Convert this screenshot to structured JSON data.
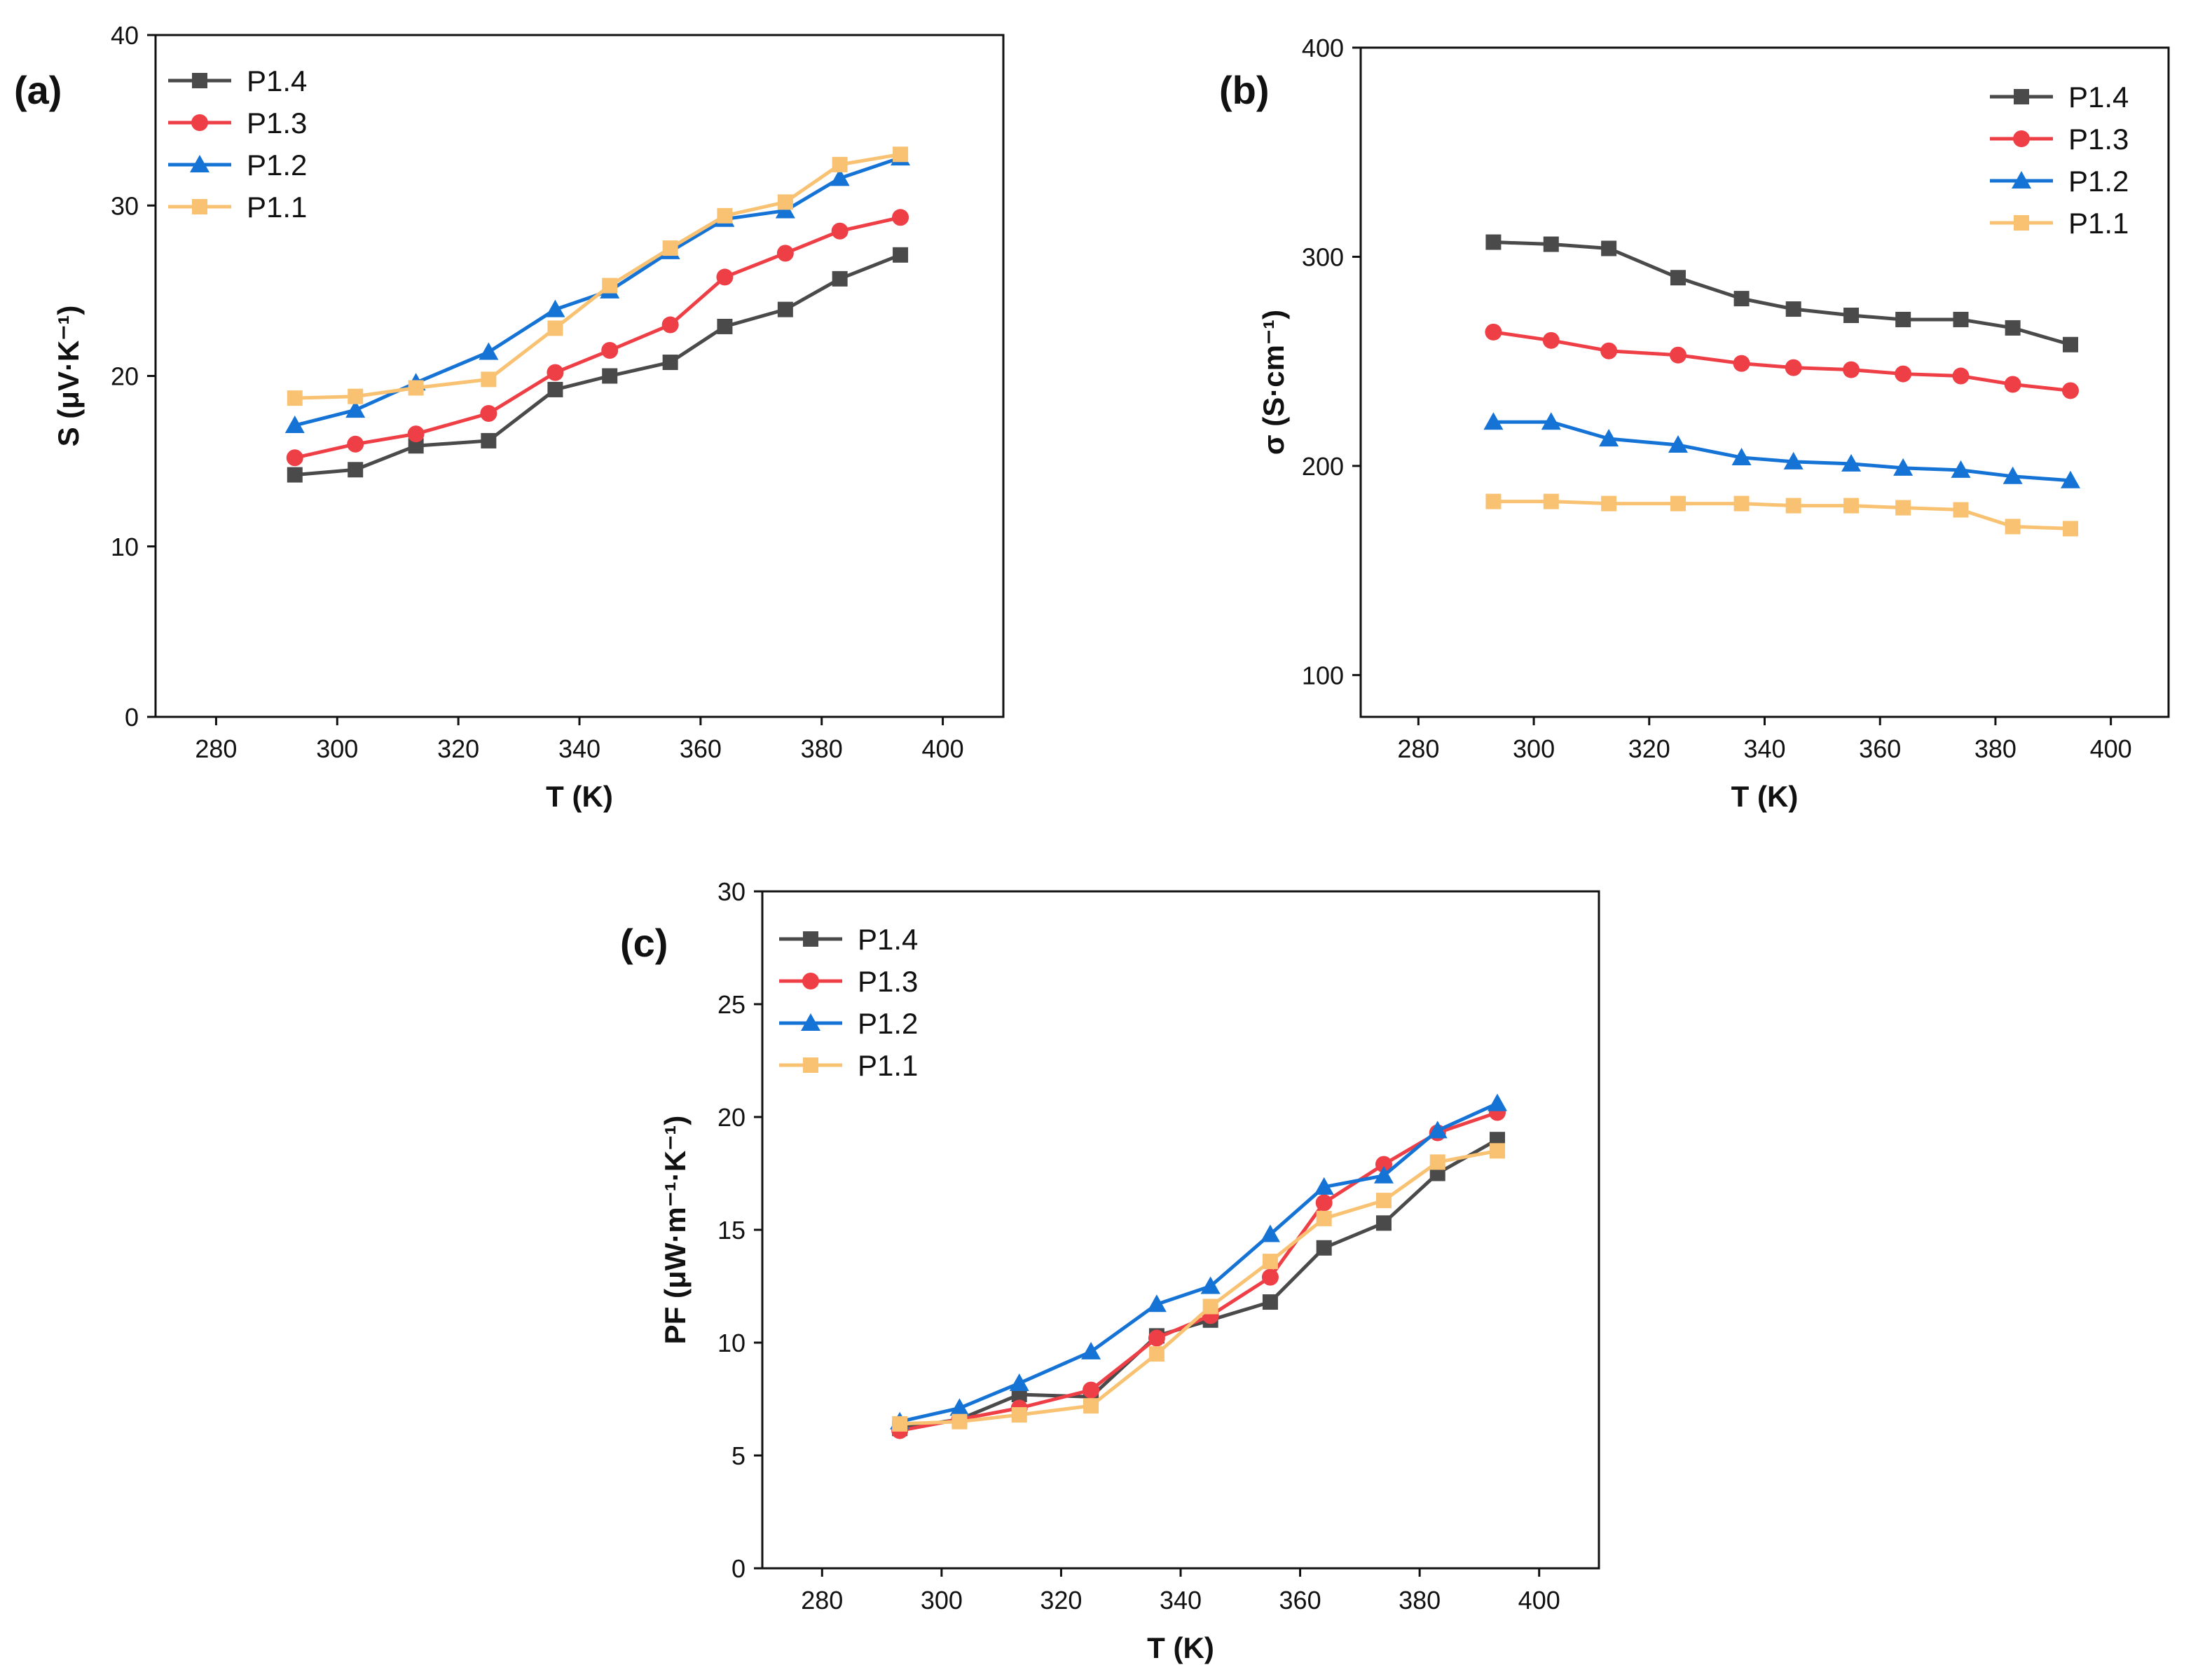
{
  "colors": {
    "P1.4": "#4a4a4a",
    "P1.3": "#ef3f46",
    "P1.2": "#1673d6",
    "P1.1": "#f8c272"
  },
  "chart_data": [
    {
      "type": "line",
      "panel_label": "(a)",
      "xlabel": "T (K)",
      "ylabel": "S (μV·K⁻¹)",
      "xlim": [
        270,
        410
      ],
      "ylim": [
        0,
        40
      ],
      "xticks": [
        280,
        300,
        320,
        340,
        360,
        380,
        400
      ],
      "yticks": [
        0,
        10,
        20,
        30,
        40
      ],
      "legend_position": "top-left",
      "x": [
        293,
        303,
        313,
        325,
        336,
        345,
        355,
        364,
        374,
        383,
        393
      ],
      "series": [
        {
          "name": "P1.4",
          "marker": "square",
          "values": [
            14.2,
            14.5,
            15.9,
            16.2,
            19.2,
            20.0,
            20.8,
            22.9,
            23.9,
            25.7,
            27.1
          ]
        },
        {
          "name": "P1.3",
          "marker": "circle",
          "values": [
            15.2,
            16.0,
            16.6,
            17.8,
            20.2,
            21.5,
            23.0,
            25.8,
            27.2,
            28.5,
            29.3
          ]
        },
        {
          "name": "P1.2",
          "marker": "triangle",
          "values": [
            17.1,
            18.0,
            19.6,
            21.4,
            23.9,
            25.0,
            27.3,
            29.2,
            29.7,
            31.6,
            32.8
          ]
        },
        {
          "name": "P1.1",
          "marker": "square",
          "values": [
            18.7,
            18.8,
            19.3,
            19.8,
            22.8,
            25.3,
            27.5,
            29.4,
            30.2,
            32.4,
            33.0
          ]
        }
      ]
    },
    {
      "type": "line",
      "panel_label": "(b)",
      "xlabel": "T (K)",
      "ylabel": "σ (S·cm⁻¹)",
      "xlim": [
        270,
        410
      ],
      "ylim": [
        80,
        400
      ],
      "xticks": [
        280,
        300,
        320,
        340,
        360,
        380,
        400
      ],
      "yticks": [
        100,
        200,
        300,
        400
      ],
      "legend_position": "top-right",
      "x": [
        293,
        303,
        313,
        325,
        336,
        345,
        355,
        364,
        374,
        383,
        393
      ],
      "series": [
        {
          "name": "P1.4",
          "marker": "square",
          "values": [
            307,
            306,
            304,
            290,
            280,
            275,
            272,
            270,
            270,
            266,
            258
          ]
        },
        {
          "name": "P1.3",
          "marker": "circle",
          "values": [
            264,
            260,
            255,
            253,
            249,
            247,
            246,
            244,
            243,
            239,
            236
          ]
        },
        {
          "name": "P1.2",
          "marker": "triangle",
          "values": [
            221,
            221,
            213,
            210,
            204,
            202,
            201,
            199,
            198,
            195,
            193
          ]
        },
        {
          "name": "P1.1",
          "marker": "square",
          "values": [
            183,
            183,
            182,
            182,
            182,
            181,
            181,
            180,
            179,
            171,
            170
          ]
        }
      ]
    },
    {
      "type": "line",
      "panel_label": "(c)",
      "xlabel": "T (K)",
      "ylabel": "PF (μW·m⁻¹·K⁻¹)",
      "xlim": [
        270,
        410
      ],
      "ylim": [
        0,
        30
      ],
      "xticks": [
        280,
        300,
        320,
        340,
        360,
        380,
        400
      ],
      "yticks": [
        0,
        5,
        10,
        15,
        20,
        25,
        30
      ],
      "legend_position": "top-left",
      "x": [
        293,
        303,
        313,
        325,
        336,
        345,
        355,
        364,
        374,
        383,
        393
      ],
      "series": [
        {
          "name": "P1.4",
          "marker": "square",
          "values": [
            6.2,
            6.6,
            7.7,
            7.6,
            10.3,
            11.0,
            11.8,
            14.2,
            15.3,
            17.5,
            19.0
          ]
        },
        {
          "name": "P1.3",
          "marker": "circle",
          "values": [
            6.1,
            6.6,
            7.1,
            7.9,
            10.2,
            11.2,
            12.9,
            16.2,
            17.9,
            19.3,
            20.2
          ]
        },
        {
          "name": "P1.2",
          "marker": "triangle",
          "values": [
            6.5,
            7.1,
            8.2,
            9.6,
            11.7,
            12.5,
            14.8,
            16.9,
            17.4,
            19.4,
            20.6
          ]
        },
        {
          "name": "P1.1",
          "marker": "square",
          "values": [
            6.4,
            6.5,
            6.8,
            7.2,
            9.5,
            11.6,
            13.6,
            15.5,
            16.3,
            18.0,
            18.5
          ]
        }
      ]
    }
  ]
}
